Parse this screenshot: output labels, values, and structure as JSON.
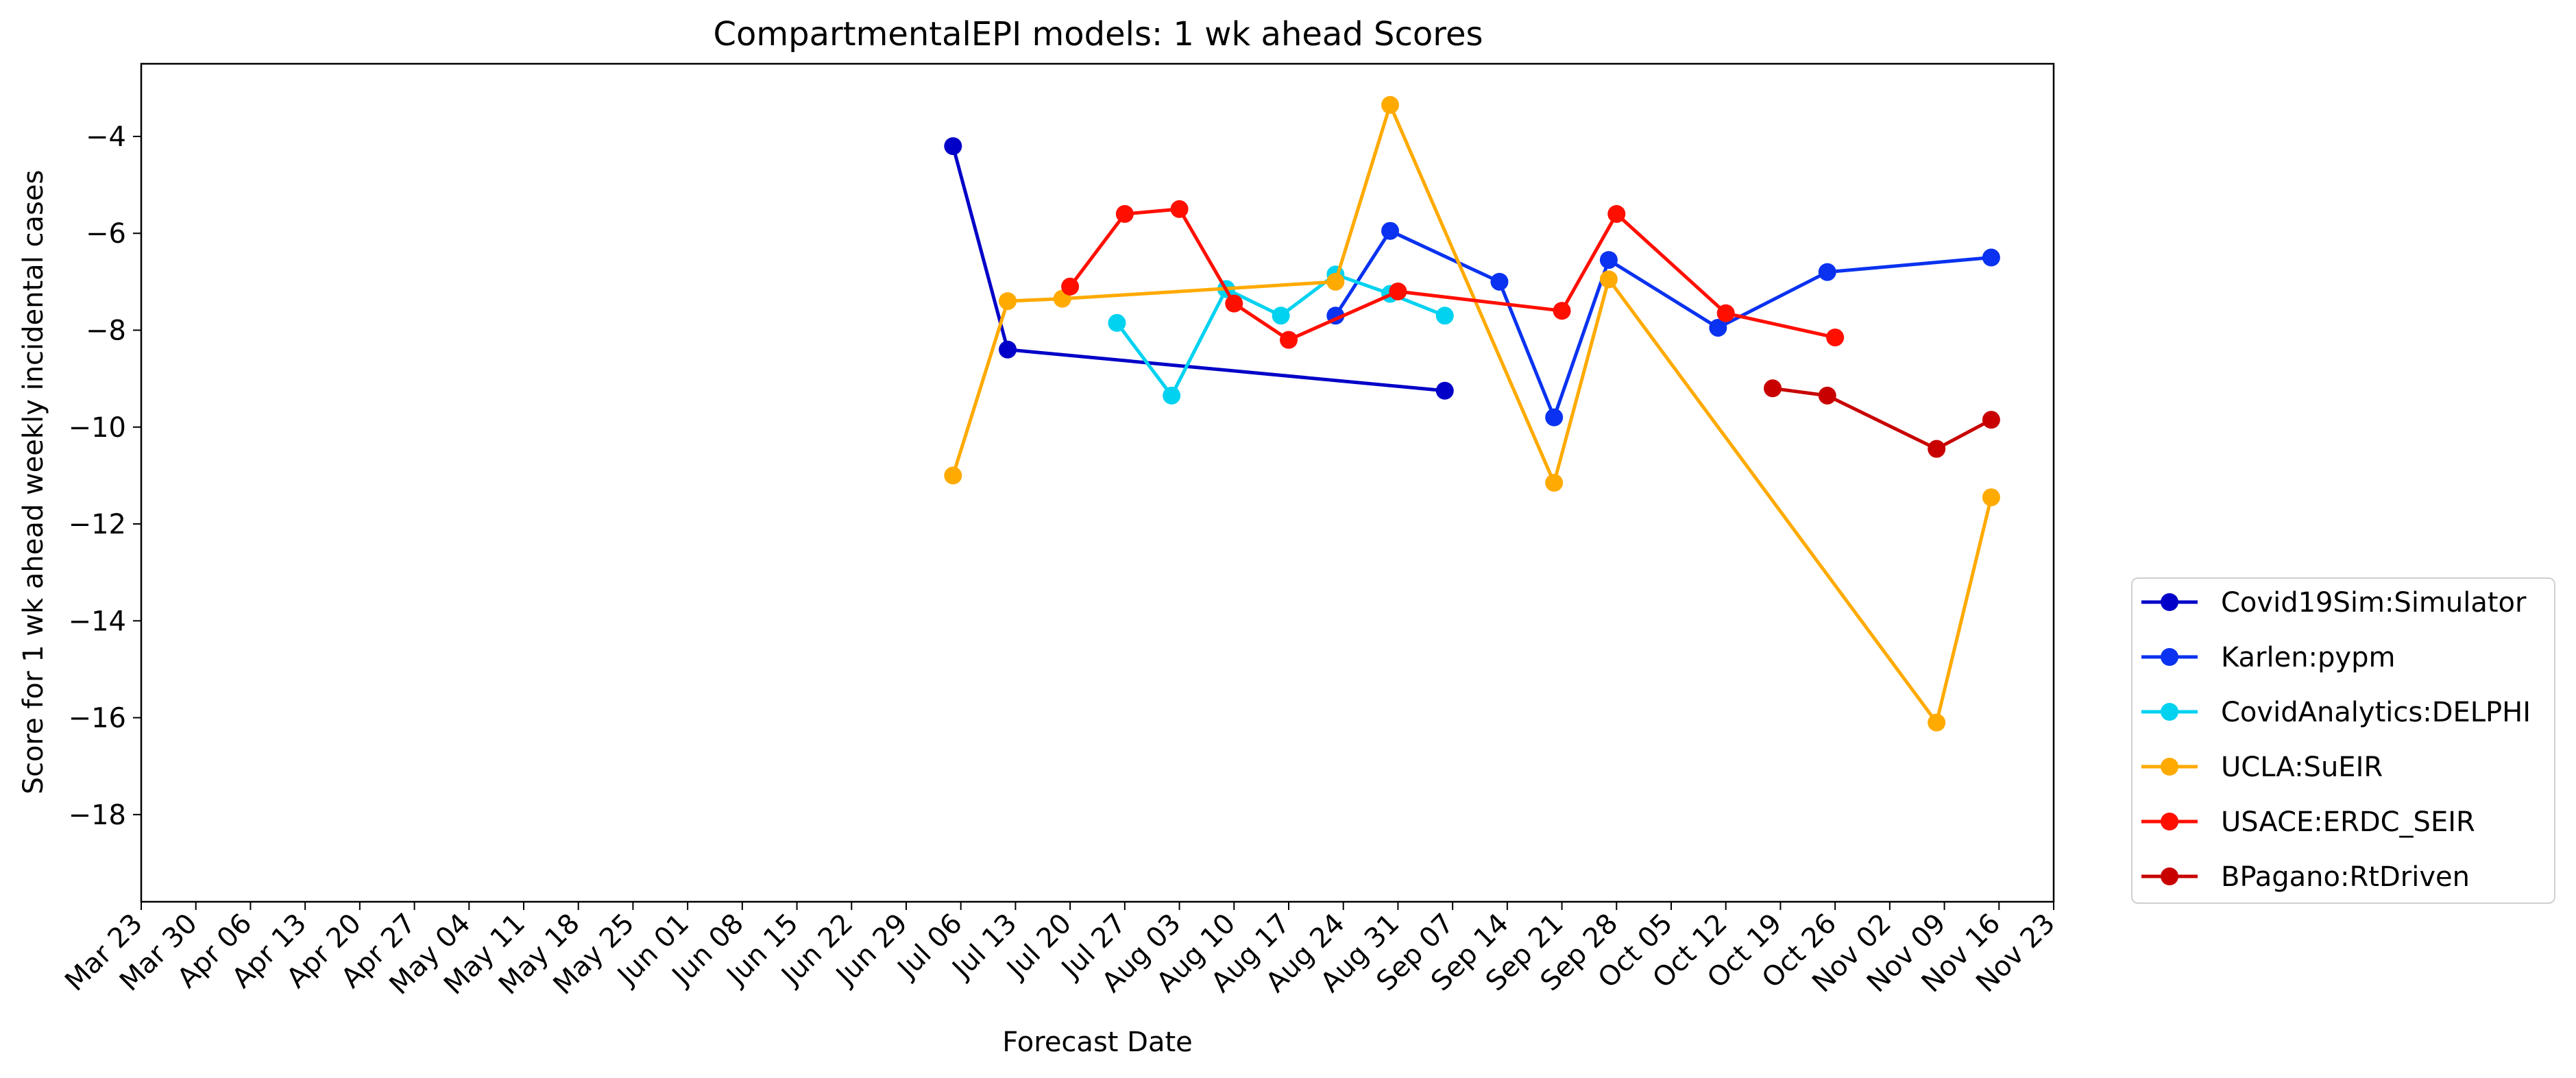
{
  "chart_data": {
    "type": "line",
    "title": "CompartmentalEPI models: 1 wk ahead Scores",
    "xlabel": "Forecast Date",
    "ylabel": "Score for 1 wk ahead weekly incidental cases",
    "x_ticks": [
      "Mar 23",
      "Mar 30",
      "Apr 06",
      "Apr 13",
      "Apr 20",
      "Apr 27",
      "May 04",
      "May 11",
      "May 18",
      "May 25",
      "Jun 01",
      "Jun 08",
      "Jun 15",
      "Jun 22",
      "Jun 29",
      "Jul 06",
      "Jul 13",
      "Jul 20",
      "Jul 27",
      "Aug 03",
      "Aug 10",
      "Aug 17",
      "Aug 24",
      "Aug 31",
      "Sep 07",
      "Sep 14",
      "Sep 21",
      "Sep 28",
      "Oct 05",
      "Oct 12",
      "Oct 19",
      "Oct 26",
      "Nov 02",
      "Nov 09",
      "Nov 16",
      "Nov 23"
    ],
    "y_ticks": [
      -4,
      -6,
      -8,
      -10,
      -12,
      -14,
      -16,
      -18
    ],
    "xlim": [
      "Mar 23",
      "Nov 23"
    ],
    "ylim": [
      -19.8,
      -2.5
    ],
    "grid": false,
    "legend_position": "outside lower right",
    "series": [
      {
        "name": "Covid19Sim:Simulator",
        "color": "#0000c8",
        "points": [
          {
            "x": "Jul 05",
            "y": -4.2
          },
          {
            "x": "Jul 12",
            "y": -8.4
          },
          {
            "x": "Sep 06",
            "y": -9.25
          }
        ]
      },
      {
        "name": "Karlen:pypm",
        "color": "#0a32f0",
        "points": [
          {
            "x": "Aug 23",
            "y": -7.7
          },
          {
            "x": "Aug 30",
            "y": -5.95
          },
          {
            "x": "Sep 13",
            "y": -7.0
          },
          {
            "x": "Sep 20",
            "y": -9.8
          },
          {
            "x": "Sep 27",
            "y": -6.55
          },
          {
            "x": "Oct 11",
            "y": -7.95
          },
          {
            "x": "Oct 25",
            "y": -6.8
          },
          {
            "x": "Nov 15",
            "y": -6.5
          }
        ]
      },
      {
        "name": "CovidAnalytics:DELPHI",
        "color": "#00d2f0",
        "points": [
          {
            "x": "Jul 26",
            "y": -7.85
          },
          {
            "x": "Aug 02",
            "y": -9.35
          },
          {
            "x": "Aug 09",
            "y": -7.15
          },
          {
            "x": "Aug 16",
            "y": -7.7
          },
          {
            "x": "Aug 23",
            "y": -6.85
          },
          {
            "x": "Aug 30",
            "y": -7.25
          },
          {
            "x": "Sep 06",
            "y": -7.7
          }
        ]
      },
      {
        "name": "UCLA:SuEIR",
        "color": "#ffaa00",
        "points": [
          {
            "x": "Jul 05",
            "y": -11.0
          },
          {
            "x": "Jul 12",
            "y": -7.4
          },
          {
            "x": "Jul 19",
            "y": -7.35
          },
          {
            "x": "Aug 23",
            "y": -7.0
          },
          {
            "x": "Aug 30",
            "y": -3.35
          },
          {
            "x": "Sep 20",
            "y": -11.15
          },
          {
            "x": "Sep 27",
            "y": -6.95
          },
          {
            "x": "Nov 08",
            "y": -16.1
          },
          {
            "x": "Nov 15",
            "y": -11.45
          }
        ]
      },
      {
        "name": "USACE:ERDC_SEIR",
        "color": "#ff0f00",
        "points": [
          {
            "x": "Jul 20",
            "y": -7.1
          },
          {
            "x": "Jul 27",
            "y": -5.6
          },
          {
            "x": "Aug 03",
            "y": -5.5
          },
          {
            "x": "Aug 10",
            "y": -7.45
          },
          {
            "x": "Aug 17",
            "y": -8.2
          },
          {
            "x": "Aug 31",
            "y": -7.2
          },
          {
            "x": "Sep 21",
            "y": -7.6
          },
          {
            "x": "Sep 28",
            "y": -5.6
          },
          {
            "x": "Oct 12",
            "y": -7.65
          },
          {
            "x": "Oct 26",
            "y": -8.15
          }
        ]
      },
      {
        "name": "BPagano:RtDriven",
        "color": "#c80000",
        "points": [
          {
            "x": "Oct 18",
            "y": -9.2
          },
          {
            "x": "Oct 25",
            "y": -9.35
          },
          {
            "x": "Nov 08",
            "y": -10.45
          },
          {
            "x": "Nov 15",
            "y": -9.85
          }
        ]
      }
    ]
  }
}
